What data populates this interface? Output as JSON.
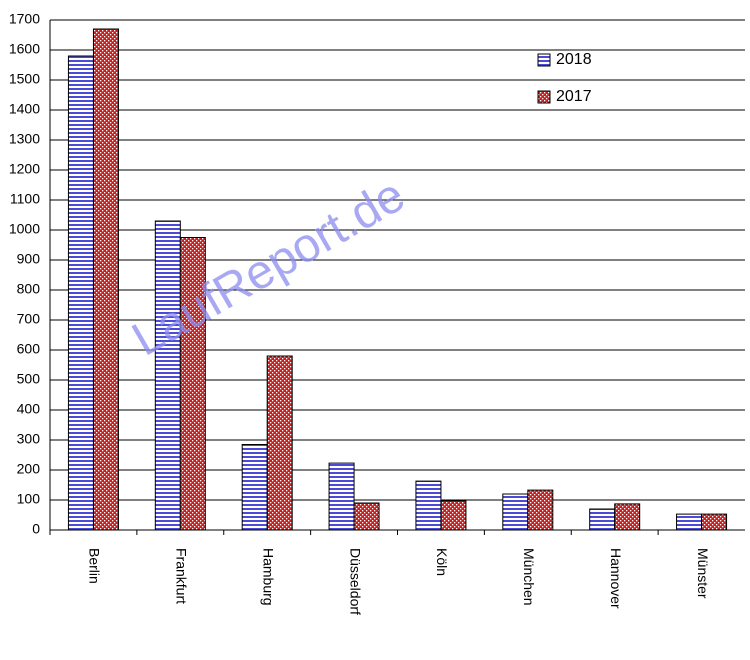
{
  "chart_data": {
    "type": "bar",
    "watermark": "LaufReport.de",
    "categories": [
      "Berlin",
      "Frankfurt",
      "Hamburg",
      "Düsseldorf",
      "Köln",
      "München",
      "Hannover",
      "Münster"
    ],
    "series": [
      {
        "name": "2018",
        "color": "#4b4bd8",
        "values": [
          1580,
          1030,
          285,
          223,
          163,
          120,
          70,
          53
        ]
      },
      {
        "name": "2017",
        "color": "#d41b1b",
        "values": [
          1670,
          975,
          580,
          90,
          97,
          133,
          87,
          53
        ]
      }
    ],
    "ylim": [
      0,
      1700
    ],
    "yticks": [
      0,
      100,
      200,
      300,
      400,
      500,
      600,
      700,
      800,
      900,
      1000,
      1100,
      1200,
      1300,
      1400,
      1500,
      1600,
      1700
    ],
    "grid": true
  }
}
